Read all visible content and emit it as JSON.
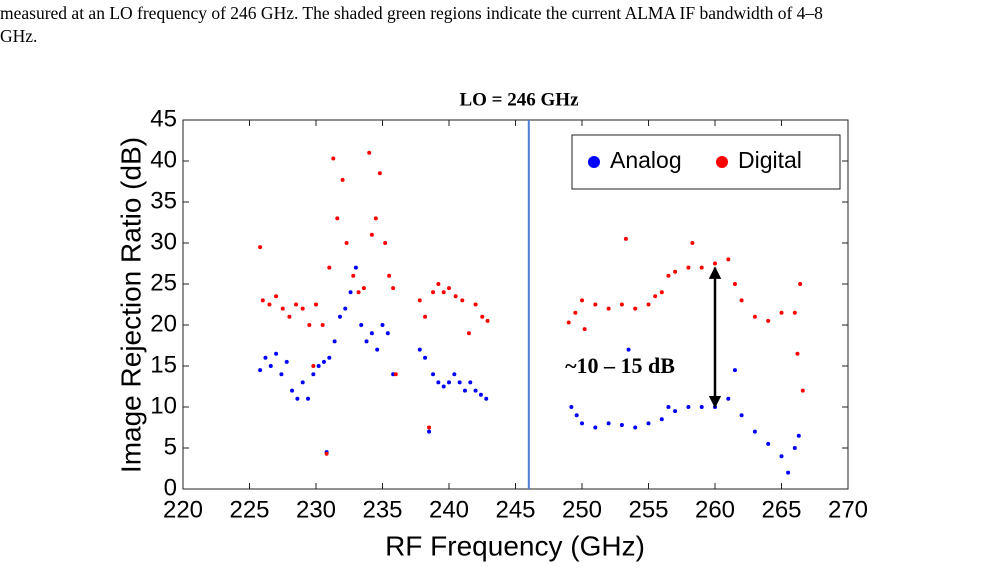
{
  "caption": {
    "lines": [
      "measured at an LO frequency of 246 GHz.  The shaded green regions indicate the current ALMA IF bandwidth of 4–8",
      "GHz."
    ]
  },
  "chart_data": {
    "type": "scatter",
    "title": "LO = 246 GHz",
    "x_label": "RF Frequency (GHz)",
    "y_label": "Image Rejection Ratio (dB)",
    "xlim": [
      220,
      270
    ],
    "xticks": [
      220,
      225,
      230,
      235,
      240,
      245,
      250,
      255,
      260,
      265,
      270
    ],
    "ylim": [
      0,
      45
    ],
    "yticks": [
      0,
      5,
      10,
      15,
      20,
      25,
      30,
      35,
      40,
      45
    ],
    "legend": "upper right",
    "vline": 246,
    "arrow": {
      "x": 260,
      "y": [
        27,
        10
      ]
    },
    "annotation": "~10 – 15 dB",
    "series": [
      {
        "name": "Analog",
        "color": "#0000ff",
        "x": [
          225.8,
          226.2,
          226.6,
          227,
          227.4,
          227.8,
          228.2,
          228.6,
          229,
          229.4,
          229.8,
          230.2,
          230.6,
          230.8,
          231,
          231.4,
          231.8,
          232.2,
          232.6,
          233,
          233.4,
          233.8,
          234.2,
          234.6,
          235,
          235.4,
          235.8,
          237.8,
          238.2,
          238.5,
          238.8,
          239.2,
          239.6,
          240,
          240.4,
          240.8,
          241.2,
          241.6,
          242,
          242.4,
          242.8,
          249.2,
          249.6,
          250,
          251,
          252,
          253,
          253.5,
          254,
          255,
          256,
          256.5,
          257,
          258,
          259,
          260,
          261,
          261.5,
          262,
          263,
          264,
          265,
          265.5,
          266,
          266.3
        ],
        "values": [
          14.5,
          16,
          15,
          16.5,
          14,
          15.5,
          12,
          11,
          13,
          11,
          14,
          15,
          15.5,
          4.5,
          16,
          18,
          21,
          22,
          24,
          27,
          20,
          18,
          19,
          17,
          20,
          19,
          14,
          17,
          16,
          7,
          14,
          13,
          12.5,
          13,
          14,
          13,
          12,
          13,
          12,
          11.5,
          11,
          10,
          9,
          8,
          7.5,
          8,
          7.8,
          17,
          7.5,
          8,
          8.5,
          10,
          9.5,
          10,
          10,
          10,
          11,
          14.5,
          9,
          7,
          5.5,
          4,
          2,
          5,
          6.5
        ]
      },
      {
        "name": "Digital",
        "color": "#ff0000",
        "x": [
          225.8,
          226,
          226.5,
          227,
          227.5,
          228,
          228.5,
          229,
          229.5,
          229.8,
          230,
          230.5,
          230.8,
          231,
          231.3,
          231.6,
          232,
          232.3,
          232.8,
          233.2,
          233.6,
          234,
          234.2,
          234.5,
          234.8,
          235.2,
          235.5,
          235.8,
          236,
          237.8,
          238.2,
          238.5,
          238.8,
          239.2,
          239.6,
          240,
          240.5,
          241,
          241.5,
          242,
          242.5,
          242.9,
          249,
          249.5,
          250,
          250.2,
          251,
          252,
          253,
          253.3,
          254,
          255,
          255.5,
          256,
          256.5,
          257,
          258,
          258.3,
          259,
          260,
          261,
          261.5,
          262,
          263,
          264,
          265,
          266,
          266.2,
          266.4,
          266.6
        ],
        "values": [
          29.5,
          23,
          22.5,
          23.5,
          22,
          21,
          22.5,
          22,
          20,
          15,
          22.5,
          20,
          4.3,
          27,
          40.3,
          33,
          37.7,
          30,
          26,
          24,
          24.5,
          41,
          31,
          33,
          38.5,
          30,
          26,
          24.5,
          14,
          23,
          21,
          7.5,
          24,
          25,
          24,
          24.5,
          23.5,
          23,
          19,
          22.5,
          21,
          20.5,
          20.3,
          21.5,
          23,
          19.5,
          22.5,
          22,
          22.5,
          30.5,
          22,
          22.5,
          23.5,
          24,
          26,
          26.5,
          27,
          30,
          27,
          27.5,
          28,
          25,
          23,
          21,
          20.5,
          21.5,
          21.5,
          16.5,
          25,
          12
        ]
      }
    ]
  }
}
